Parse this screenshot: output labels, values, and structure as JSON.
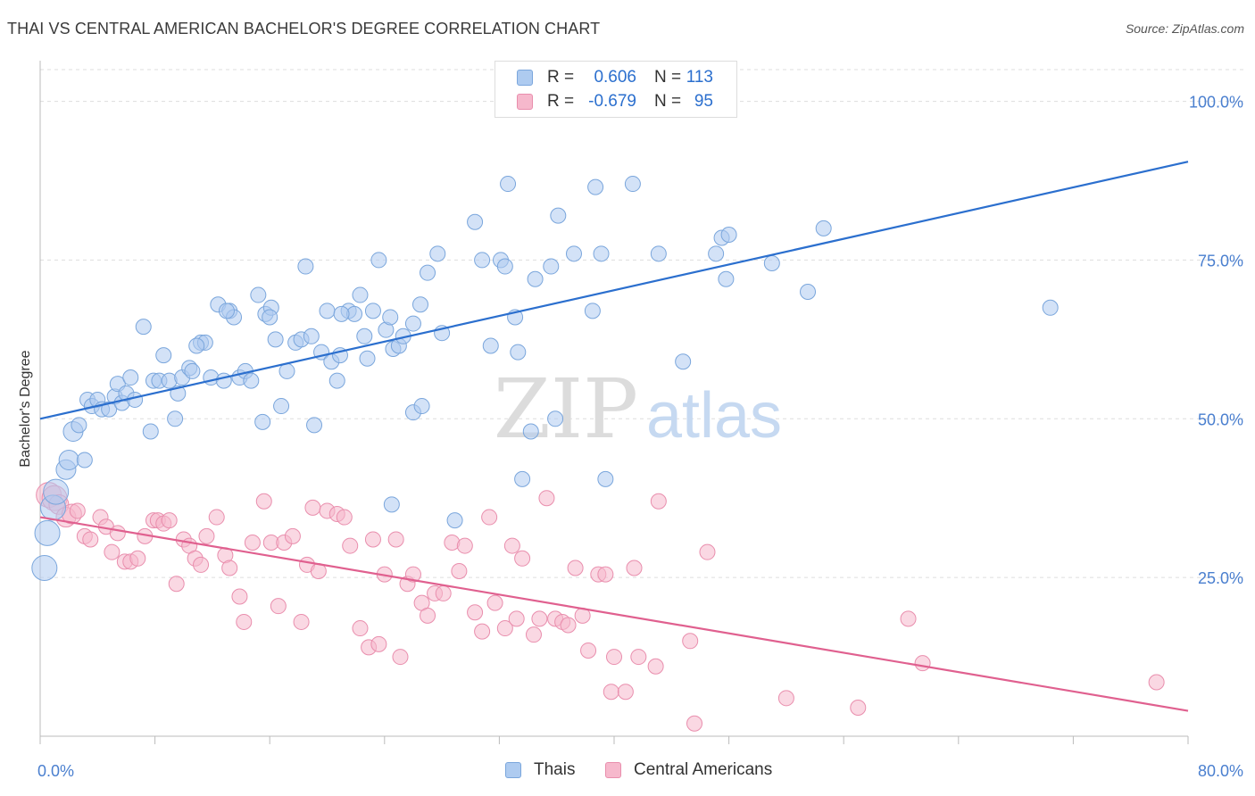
{
  "title": "THAI VS CENTRAL AMERICAN BACHELOR'S DEGREE CORRELATION CHART",
  "source": "Source: ZipAtlas.com",
  "watermark": {
    "zip": "ZIP",
    "atlas": "atlas"
  },
  "colors": {
    "blue_fill": "#aecbf0",
    "blue_stroke": "#7aa6dc",
    "blue_line": "#2b6fce",
    "pink_fill": "#f6b8cc",
    "pink_stroke": "#e98ead",
    "pink_line": "#e0608f",
    "tick_text": "#4a7fcf",
    "grid": "#dddddd"
  },
  "legend_top": {
    "rows": [
      {
        "r_label": "R =",
        "r_value": "0.606",
        "n_label": "N =",
        "n_value": "113"
      },
      {
        "r_label": "R =",
        "r_value": "-0.679",
        "n_label": "N =",
        "n_value": "95"
      }
    ]
  },
  "legend_bottom": [
    "Thais",
    "Central Americans"
  ],
  "chart_data": {
    "type": "scatter",
    "title": "THAI VS CENTRAL AMERICAN BACHELOR'S DEGREE CORRELATION CHART",
    "xlabel": "",
    "ylabel": "Bachelor's Degree",
    "xlim": [
      0,
      80
    ],
    "ylim": [
      0,
      105
    ],
    "x_tick_labels": [
      "0.0%",
      "80.0%"
    ],
    "y_ticks": [
      25,
      50,
      75,
      100
    ],
    "y_tick_labels": [
      "25.0%",
      "50.0%",
      "75.0%",
      "100.0%"
    ],
    "grid": "horizontal dashed",
    "legend_position": "top-center",
    "series": [
      {
        "name": "Thais",
        "r": 0.606,
        "n": 113,
        "trend": {
          "x": [
            0,
            80
          ],
          "y": [
            50.0,
            90.5
          ]
        },
        "points": [
          [
            0.3,
            26.5
          ],
          [
            0.5,
            32.0
          ],
          [
            0.9,
            36.0
          ],
          [
            1.1,
            38.5
          ],
          [
            1.8,
            42.0
          ],
          [
            2.0,
            43.5
          ],
          [
            2.3,
            48.0
          ],
          [
            2.7,
            49.0
          ],
          [
            3.1,
            43.5
          ],
          [
            3.3,
            53.0
          ],
          [
            3.6,
            52.0
          ],
          [
            4.0,
            53.0
          ],
          [
            4.3,
            51.5
          ],
          [
            4.8,
            51.5
          ],
          [
            5.2,
            53.5
          ],
          [
            5.4,
            55.5
          ],
          [
            5.7,
            52.5
          ],
          [
            6.0,
            54.0
          ],
          [
            6.3,
            56.5
          ],
          [
            6.6,
            53.0
          ],
          [
            7.2,
            64.5
          ],
          [
            7.7,
            48.0
          ],
          [
            7.9,
            56.0
          ],
          [
            8.3,
            56.0
          ],
          [
            8.6,
            60.0
          ],
          [
            9.0,
            56.0
          ],
          [
            9.4,
            50.0
          ],
          [
            9.6,
            54.0
          ],
          [
            9.9,
            56.5
          ],
          [
            10.4,
            58.0
          ],
          [
            10.6,
            57.5
          ],
          [
            11.2,
            62.0
          ],
          [
            11.5,
            62.0
          ],
          [
            11.9,
            56.5
          ],
          [
            12.4,
            68.0
          ],
          [
            12.8,
            56.0
          ],
          [
            13.2,
            67.0
          ],
          [
            13.5,
            66.0
          ],
          [
            13.9,
            56.5
          ],
          [
            14.3,
            57.5
          ],
          [
            14.7,
            56.0
          ],
          [
            15.2,
            69.5
          ],
          [
            15.5,
            49.5
          ],
          [
            15.7,
            66.5
          ],
          [
            16.1,
            67.5
          ],
          [
            16.4,
            62.5
          ],
          [
            16.8,
            52.0
          ],
          [
            17.2,
            57.5
          ],
          [
            17.8,
            62.0
          ],
          [
            18.2,
            62.5
          ],
          [
            18.5,
            74.0
          ],
          [
            18.9,
            63.0
          ],
          [
            19.1,
            49.0
          ],
          [
            19.6,
            60.5
          ],
          [
            20.0,
            67.0
          ],
          [
            20.3,
            59.0
          ],
          [
            20.7,
            56.0
          ],
          [
            20.9,
            60.0
          ],
          [
            21.5,
            67.0
          ],
          [
            21.9,
            66.5
          ],
          [
            22.3,
            69.5
          ],
          [
            22.6,
            63.0
          ],
          [
            22.8,
            59.5
          ],
          [
            23.2,
            67.0
          ],
          [
            23.6,
            75.0
          ],
          [
            24.1,
            64.0
          ],
          [
            24.4,
            66.0
          ],
          [
            24.6,
            61.0
          ],
          [
            25.0,
            61.5
          ],
          [
            25.3,
            63.0
          ],
          [
            26.0,
            65.0
          ],
          [
            26.0,
            51.0
          ],
          [
            26.5,
            68.0
          ],
          [
            26.6,
            52.0
          ],
          [
            27.0,
            73.0
          ],
          [
            27.7,
            76.0
          ],
          [
            28.0,
            63.5
          ],
          [
            30.3,
            81.0
          ],
          [
            30.8,
            75.0
          ],
          [
            31.4,
            61.5
          ],
          [
            32.1,
            75.0
          ],
          [
            32.4,
            74.0
          ],
          [
            32.6,
            87.0
          ],
          [
            33.1,
            66.0
          ],
          [
            33.3,
            60.5
          ],
          [
            33.6,
            40.5
          ],
          [
            34.2,
            48.0
          ],
          [
            34.5,
            72.0
          ],
          [
            35.6,
            74.0
          ],
          [
            35.9,
            50.0
          ],
          [
            36.1,
            82.0
          ],
          [
            37.2,
            76.0
          ],
          [
            38.5,
            67.0
          ],
          [
            38.7,
            86.5
          ],
          [
            39.1,
            76.0
          ],
          [
            39.4,
            40.5
          ],
          [
            41.3,
            87.0
          ],
          [
            43.1,
            76.0
          ],
          [
            44.8,
            59.0
          ],
          [
            47.1,
            76.0
          ],
          [
            47.5,
            78.5
          ],
          [
            47.8,
            72.0
          ],
          [
            48.0,
            79.0
          ],
          [
            51.0,
            74.5
          ],
          [
            53.5,
            70.0
          ],
          [
            54.6,
            80.0
          ],
          [
            70.4,
            67.5
          ],
          [
            28.9,
            34.0
          ],
          [
            24.5,
            36.5
          ],
          [
            16.0,
            66.0
          ],
          [
            21.0,
            66.5
          ],
          [
            13.0,
            67.0
          ],
          [
            10.9,
            61.5
          ]
        ]
      },
      {
        "name": "Central Americans",
        "r": -0.679,
        "n": 95,
        "trend": {
          "x": [
            0,
            80
          ],
          "y": [
            34.5,
            4.0
          ]
        },
        "points": [
          [
            0.6,
            38.0
          ],
          [
            1.0,
            37.5
          ],
          [
            1.3,
            36.5
          ],
          [
            1.8,
            34.5
          ],
          [
            2.2,
            35.0
          ],
          [
            2.6,
            35.5
          ],
          [
            3.1,
            31.5
          ],
          [
            3.5,
            31.0
          ],
          [
            4.2,
            34.5
          ],
          [
            4.6,
            33.0
          ],
          [
            5.0,
            29.0
          ],
          [
            5.4,
            32.0
          ],
          [
            5.9,
            27.5
          ],
          [
            6.3,
            27.5
          ],
          [
            6.8,
            28.0
          ],
          [
            7.3,
            31.5
          ],
          [
            7.9,
            34.0
          ],
          [
            8.2,
            34.0
          ],
          [
            8.6,
            33.5
          ],
          [
            9.0,
            34.0
          ],
          [
            9.5,
            24.0
          ],
          [
            10.0,
            31.0
          ],
          [
            10.4,
            30.0
          ],
          [
            10.8,
            28.0
          ],
          [
            11.2,
            27.0
          ],
          [
            11.6,
            31.5
          ],
          [
            12.3,
            34.5
          ],
          [
            12.9,
            28.5
          ],
          [
            13.2,
            26.5
          ],
          [
            13.9,
            22.0
          ],
          [
            14.2,
            18.0
          ],
          [
            14.8,
            30.5
          ],
          [
            15.6,
            37.0
          ],
          [
            16.1,
            30.5
          ],
          [
            16.6,
            20.5
          ],
          [
            17.0,
            30.5
          ],
          [
            17.6,
            31.5
          ],
          [
            18.2,
            18.0
          ],
          [
            18.6,
            27.0
          ],
          [
            19.0,
            36.0
          ],
          [
            19.4,
            26.0
          ],
          [
            20.0,
            35.5
          ],
          [
            20.7,
            35.0
          ],
          [
            21.2,
            34.5
          ],
          [
            21.6,
            30.0
          ],
          [
            22.3,
            17.0
          ],
          [
            22.9,
            14.0
          ],
          [
            23.2,
            31.0
          ],
          [
            23.6,
            14.5
          ],
          [
            24.0,
            25.5
          ],
          [
            24.8,
            31.0
          ],
          [
            25.1,
            12.5
          ],
          [
            25.6,
            24.0
          ],
          [
            26.0,
            25.5
          ],
          [
            26.6,
            21.0
          ],
          [
            27.0,
            19.0
          ],
          [
            27.5,
            22.5
          ],
          [
            28.1,
            22.5
          ],
          [
            28.7,
            30.5
          ],
          [
            29.2,
            26.0
          ],
          [
            29.6,
            30.0
          ],
          [
            30.3,
            19.5
          ],
          [
            30.8,
            16.5
          ],
          [
            31.3,
            34.5
          ],
          [
            31.7,
            21.0
          ],
          [
            32.4,
            17.0
          ],
          [
            32.9,
            30.0
          ],
          [
            33.2,
            18.5
          ],
          [
            33.6,
            28.0
          ],
          [
            34.4,
            16.0
          ],
          [
            34.8,
            18.5
          ],
          [
            35.3,
            37.5
          ],
          [
            35.9,
            18.5
          ],
          [
            36.4,
            18.0
          ],
          [
            36.8,
            17.5
          ],
          [
            37.3,
            26.5
          ],
          [
            37.8,
            19.0
          ],
          [
            38.2,
            13.5
          ],
          [
            38.9,
            25.5
          ],
          [
            39.4,
            25.5
          ],
          [
            39.8,
            7.0
          ],
          [
            40.0,
            12.5
          ],
          [
            40.8,
            7.0
          ],
          [
            41.4,
            26.5
          ],
          [
            41.7,
            12.5
          ],
          [
            42.9,
            11.0
          ],
          [
            43.1,
            37.0
          ],
          [
            45.3,
            15.0
          ],
          [
            45.6,
            2.0
          ],
          [
            46.5,
            29.0
          ],
          [
            52.0,
            6.0
          ],
          [
            57.0,
            4.5
          ],
          [
            60.5,
            18.5
          ],
          [
            61.5,
            11.5
          ],
          [
            77.8,
            8.5
          ]
        ]
      }
    ]
  }
}
